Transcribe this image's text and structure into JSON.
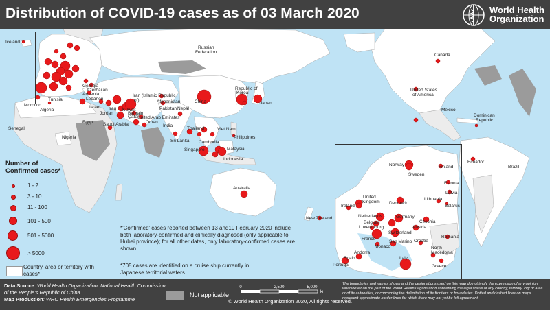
{
  "header": {
    "title": "Distribution of COVID-19 cases as of 03 March 2020",
    "org_line1": "World Health",
    "org_line2": "Organization"
  },
  "legend": {
    "title_line1": "Number of",
    "title_line2": "Confirmed cases*",
    "bins": [
      "1 - 2",
      "3 - 10",
      "11 - 100",
      "101 - 500",
      "501 - 5000",
      "> 5000"
    ],
    "territory_label": "Country, area or territory with cases*"
  },
  "notes": {
    "confirmed_note": "*'Confirmed' cases reported between 13 and19 February 2020 include both laboratory-confirmed and clinically diagnosed (only applicable to Hubei province); for all other dates, only laboratory-confirmed cases are shown.",
    "cruise_note": "*705 cases are identified on a cruise ship currently in Japanese territorial waters."
  },
  "footer": {
    "data_source_label": "Data Source",
    "data_source": ": World Health Organization, National Health Commission of the People's Republic of China",
    "map_production_label": "Map Production",
    "map_production": ": WHO Health Emergencies Programme",
    "not_applicable": "Not applicable",
    "scale_0": "0",
    "scale_mid": "2,500",
    "scale_end": "5,000",
    "scale_unit": "km",
    "copyright": "© World Health Organization 2020, All rights reserved.",
    "disclaimer": "The boundaries and names shown and the designations used on this map do not imply the expression of any opinion whatsoever on the part of the World Health Organization concerning the legal status of any country, territory, city or area or of its authorities, or concerning the delimitation of its frontiers or boundaries. Dotted and dashed lines on maps represent approximate border lines for which there may not yet be full agreement."
  },
  "colors": {
    "ocean": "#bfe3f5",
    "land_with_cases": "#ffffff",
    "land_without_cases": "#ececec",
    "not_applicable": "#9b9b9b",
    "case_dot": "#e8191b",
    "header": "#414141"
  },
  "labels": [
    {
      "key": "iceland",
      "text": "Iceland"
    },
    {
      "key": "russia1",
      "text": "Russian"
    },
    {
      "key": "russia2",
      "text": "Federation"
    },
    {
      "key": "georgia",
      "text": "Georgia"
    },
    {
      "key": "azerbaijan",
      "text": "Azerbaijan"
    },
    {
      "key": "armenia",
      "text": "Armenia"
    },
    {
      "key": "iran1",
      "text": "Iran (Islamic Republic"
    },
    {
      "key": "iran2",
      "text": "of)"
    },
    {
      "key": "afghanistan",
      "text": "Afghanistan"
    },
    {
      "key": "pakistan",
      "text": "Pakistan"
    },
    {
      "key": "nepal",
      "text": "Nepal"
    },
    {
      "key": "india",
      "text": "India"
    },
    {
      "key": "srilanka",
      "text": "Sri Lanka"
    },
    {
      "key": "lebanon",
      "text": "Lebanon"
    },
    {
      "key": "israel",
      "text": "Israel"
    },
    {
      "key": "iraq",
      "text": "Iraq"
    },
    {
      "key": "jordan",
      "text": "Jordan"
    },
    {
      "key": "kuwait",
      "text": "Kuwait"
    },
    {
      "key": "bahrain",
      "text": "Bahrain"
    },
    {
      "key": "qatar",
      "text": "Qatar"
    },
    {
      "key": "uae",
      "text": "United Arab Emirates"
    },
    {
      "key": "oman",
      "text": "Oman"
    },
    {
      "key": "saudi",
      "text": "Saudi Arabia"
    },
    {
      "key": "egypt",
      "text": "Egypt"
    },
    {
      "key": "algeria",
      "text": "Algeria"
    },
    {
      "key": "tunisia",
      "text": "Tunisia"
    },
    {
      "key": "morocco",
      "text": "Morocco"
    },
    {
      "key": "senegal",
      "text": "Senegal"
    },
    {
      "key": "nigeria",
      "text": "Nigeria"
    },
    {
      "key": "china",
      "text": "China"
    },
    {
      "key": "korea1",
      "text": "Republic of"
    },
    {
      "key": "korea2",
      "text": "Korea"
    },
    {
      "key": "japan",
      "text": "Japan"
    },
    {
      "key": "thailand",
      "text": "Thailand"
    },
    {
      "key": "vietnam",
      "text": "Viet Nam"
    },
    {
      "key": "cambodia",
      "text": "Cambodia"
    },
    {
      "key": "philippines",
      "text": "Philippines"
    },
    {
      "key": "malaysia",
      "text": "Malaysia"
    },
    {
      "key": "singapore",
      "text": "Singapore"
    },
    {
      "key": "indonesia",
      "text": "Indonesia"
    },
    {
      "key": "australia",
      "text": "Australia"
    },
    {
      "key": "newzealand",
      "text": "New Zealand"
    },
    {
      "key": "canada",
      "text": "Canada"
    },
    {
      "key": "usa1",
      "text": "United States"
    },
    {
      "key": "usa2",
      "text": "of America"
    },
    {
      "key": "mexico",
      "text": "Mexico"
    },
    {
      "key": "dominican1",
      "text": "Dominican"
    },
    {
      "key": "dominican2",
      "text": "Republic"
    },
    {
      "key": "ecuador",
      "text": "Ecuador"
    },
    {
      "key": "brazil",
      "text": "Brazil"
    },
    {
      "key": "norway",
      "text": "Norway"
    },
    {
      "key": "sweden",
      "text": "Sweden"
    },
    {
      "key": "finland",
      "text": "Finland"
    },
    {
      "key": "estonia",
      "text": "Estonia"
    },
    {
      "key": "latvia",
      "text": "Latvia"
    },
    {
      "key": "lithuania",
      "text": "Lithuania"
    },
    {
      "key": "belarus",
      "text": "Belarus"
    },
    {
      "key": "denmark",
      "text": "Denmark"
    },
    {
      "key": "uk1",
      "text": "United"
    },
    {
      "key": "uk2",
      "text": "Kingdom"
    },
    {
      "key": "ireland",
      "text": "Ireland"
    },
    {
      "key": "netherlands",
      "text": "Netherlands"
    },
    {
      "key": "belgium",
      "text": "Belgium"
    },
    {
      "key": "luxembourg",
      "text": "Luxembourg"
    },
    {
      "key": "germany",
      "text": "Germany"
    },
    {
      "key": "czechia",
      "text": "Czechia"
    },
    {
      "key": "austria",
      "text": "Austria"
    },
    {
      "key": "switzerland",
      "text": "Switzerland"
    },
    {
      "key": "france",
      "text": "France"
    },
    {
      "key": "monaco",
      "text": "Monaco"
    },
    {
      "key": "sanmarino",
      "text": "San Marino"
    },
    {
      "key": "croatia",
      "text": "Croatia"
    },
    {
      "key": "andorra",
      "text": "Andorra"
    },
    {
      "key": "spain",
      "text": "Spain"
    },
    {
      "key": "portugal",
      "text": "Portugal"
    },
    {
      "key": "romania",
      "text": "Romania"
    },
    {
      "key": "northmacedonia1",
      "text": "North"
    },
    {
      "key": "northmacedonia2",
      "text": "Macedonia"
    },
    {
      "key": "greece",
      "text": "Greece"
    },
    {
      "key": "italy",
      "text": "Italy"
    }
  ]
}
